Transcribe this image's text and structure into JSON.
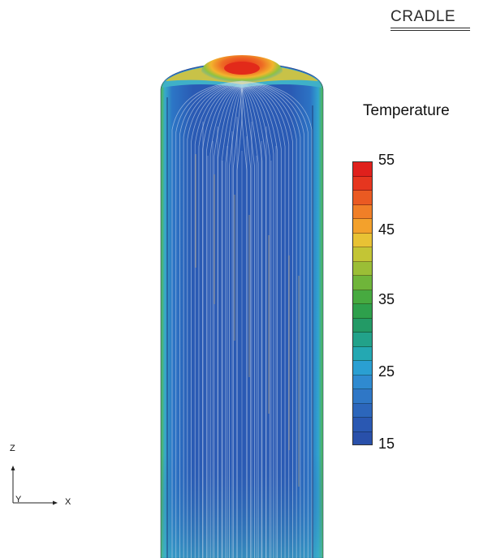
{
  "brand": {
    "logo_text": "CRADLE"
  },
  "legend": {
    "title": "Temperature",
    "min": 15,
    "max": 55,
    "ticks": [
      "55",
      "45",
      "35",
      "25",
      "15"
    ],
    "bands": [
      "#e0201c",
      "#e6361f",
      "#ea5a22",
      "#f07f27",
      "#f3a12c",
      "#e8c234",
      "#c3c535",
      "#9bbe36",
      "#6fb53a",
      "#47aa40",
      "#2ea04c",
      "#239a66",
      "#22a28a",
      "#24a8b2",
      "#2a9fd2",
      "#2f8ad0",
      "#2f77c6",
      "#2c66bb",
      "#2a58b2",
      "#2950aa"
    ]
  },
  "axes": {
    "z_label": "Z",
    "x_label": "X",
    "y_label": "Y"
  },
  "viz": {
    "colors": {
      "body": "#2a59b4",
      "edge_green": "#59c046",
      "edge_cyan": "#2fb0d8",
      "hot": "#e82a1c",
      "orange": "#f29a2e"
    }
  }
}
